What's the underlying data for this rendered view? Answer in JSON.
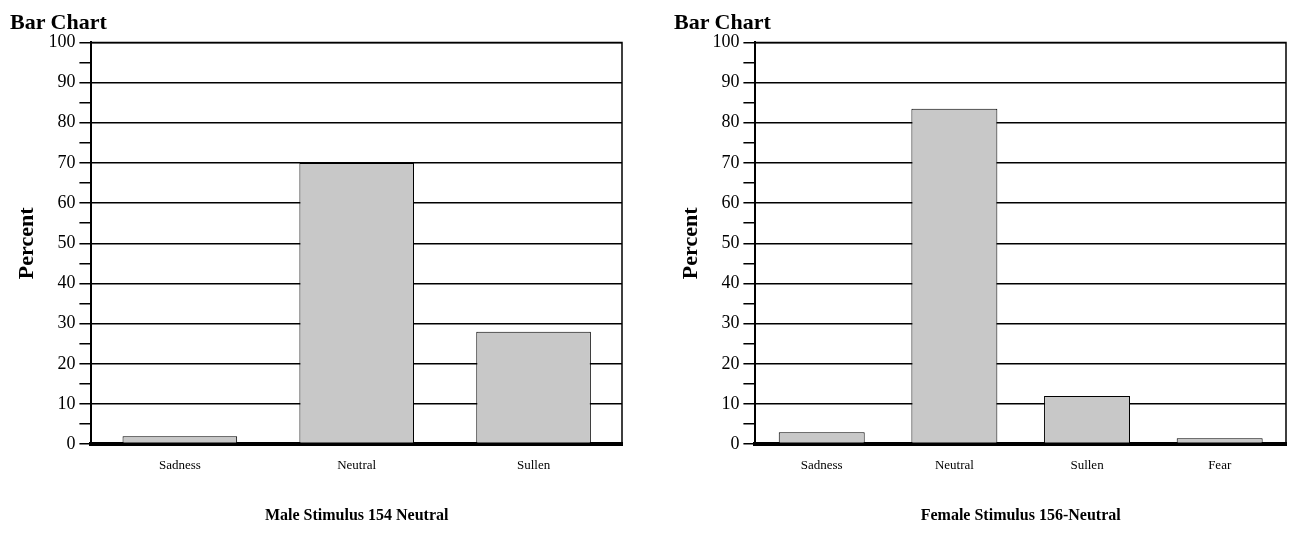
{
  "chart_data": [
    {
      "type": "bar",
      "title": "Bar Chart",
      "xlabel": "Male Stimulus 154 Neutral",
      "ylabel": "Percent",
      "categories": [
        "Sadness",
        "Neutral",
        "Sullen"
      ],
      "values": [
        2,
        70,
        28
      ],
      "color": "#c8c8c8",
      "ylim": [
        0,
        100
      ],
      "yticks": [
        0,
        {
          "value": 5,
          "label": null
        },
        10,
        {
          "value": 15,
          "label": null
        },
        20,
        {
          "value": 25,
          "label": null
        },
        30,
        {
          "value": 35,
          "label": null
        },
        40,
        {
          "value": 45,
          "label": null
        },
        50,
        {
          "value": 55,
          "label": null
        },
        60,
        {
          "value": 65,
          "label": null
        },
        70,
        {
          "value": 75,
          "label": null
        },
        80,
        {
          "value": 85,
          "label": null
        },
        90,
        {
          "value": 95,
          "label": null
        },
        100
      ],
      "grid": "y"
    },
    {
      "type": "bar",
      "title": "Bar Chart",
      "xlabel": "Female Stimulus 156-Neutral",
      "ylabel": "Percent",
      "categories": [
        "Sadness",
        "Neutral",
        "Sullen",
        "Fear"
      ],
      "values": [
        3,
        83.5,
        12,
        1.5
      ],
      "color": "#c8c8c8",
      "ylim": [
        0,
        100
      ],
      "yticks": [
        0,
        {
          "value": 5,
          "label": null
        },
        10,
        {
          "value": 15,
          "label": null
        },
        20,
        {
          "value": 25,
          "label": null
        },
        30,
        {
          "value": 35,
          "label": null
        },
        40,
        {
          "value": 45,
          "label": null
        },
        50,
        {
          "value": 55,
          "label": null
        },
        60,
        {
          "value": 65,
          "label": null
        },
        70,
        {
          "value": 75,
          "label": null
        },
        80,
        {
          "value": 85,
          "label": null
        },
        90,
        {
          "value": 95,
          "label": null
        },
        100
      ],
      "grid": "y"
    }
  ]
}
